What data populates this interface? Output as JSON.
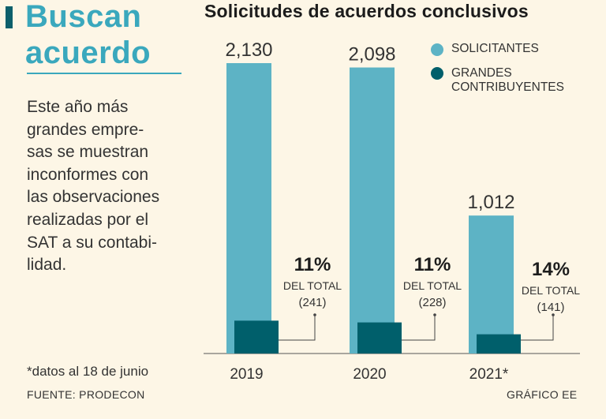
{
  "headline": {
    "line1": "Buscan",
    "line2": "acuerdo"
  },
  "intro_text": "Este año más\ngrandes empre-\nsas se muestran\ninconformes con\nlas observaciones\nrealizadas por el\nSAT a su contabi-\nlidad.",
  "footnote": "*datos al 18 de junio",
  "source": "FUENTE: PRODECON",
  "credit": "GRÁFICO EE",
  "colors": {
    "accent": "#3aa8bd",
    "solicitantes": "#5db3c5",
    "grandes": "#005f6b",
    "background": "#fdf6e6"
  },
  "chart_data": {
    "type": "bar",
    "title": "Solicitudes de acuerdos conclusivos",
    "categories": [
      "2019",
      "2020",
      "2021*"
    ],
    "series": [
      {
        "name": "SOLICITANTES",
        "values": [
          2130,
          2098,
          1012
        ],
        "value_labels": [
          "2,130",
          "2,098",
          "1,012"
        ]
      },
      {
        "name": "GRANDES CONTRIBUYENTES",
        "values": [
          241,
          228,
          141
        ]
      }
    ],
    "annotations": [
      {
        "percent": "11%",
        "label": "DEL TOTAL",
        "count": "(241)"
      },
      {
        "percent": "11%",
        "label": "DEL TOTAL",
        "count": "(228)"
      },
      {
        "percent": "14%",
        "label": "DEL TOTAL",
        "count": "(141)"
      }
    ],
    "legend": {
      "position": "top-right",
      "items": [
        {
          "line1": "SOLICITANTES",
          "line2": ""
        },
        {
          "line1": "GRANDES",
          "line2": "CONTRIBUYENTES"
        }
      ]
    },
    "xlabel": "",
    "ylabel": "",
    "ylim": [
      0,
      2200
    ],
    "grid": false
  }
}
